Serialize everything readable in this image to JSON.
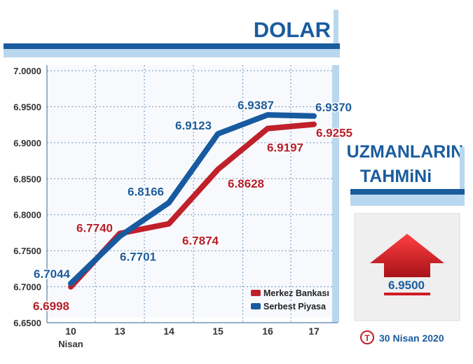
{
  "header": {
    "title": "DOLAR"
  },
  "chart_data": {
    "type": "line",
    "categories": [
      "10",
      "13",
      "14",
      "15",
      "16",
      "17"
    ],
    "first_category_sublabel": "Nisan",
    "yticks": [
      "6.6500",
      "6.7000",
      "6.7500",
      "6.8000",
      "6.8500",
      "6.9000",
      "6.9500",
      "7.0000"
    ],
    "ylim": [
      6.65,
      7.0
    ],
    "grid": true,
    "legend_position": "bottom-right",
    "series": [
      {
        "name": "Merkez Bankası",
        "color": "#c0202a",
        "values": [
          6.6998,
          6.774,
          6.7874,
          6.8628,
          6.9197,
          6.9255
        ],
        "labels": [
          "6.6998",
          "6.7740",
          "6.7874",
          "6.8628",
          "6.9197",
          "6.9255"
        ]
      },
      {
        "name": "Serbest Piyasa",
        "color": "#175aa0",
        "values": [
          6.7044,
          6.7701,
          6.8166,
          6.9123,
          6.9387,
          6.937
        ],
        "labels": [
          "6.7044",
          "6.7701",
          "6.8166",
          "6.9123",
          "6.9387",
          "6.9370"
        ]
      }
    ]
  },
  "forecast": {
    "title_line1": "UZMANLARIN",
    "title_line2": "TAHMiNi",
    "value": "6.9500",
    "direction": "up",
    "date": "30 Nisan 2020",
    "source_icon": "T"
  },
  "colors": {
    "red": "#c0202a",
    "blue": "#175aa0",
    "title_blue": "#1a5c9e",
    "light_blue": "#b9d7ee",
    "panel_bg": "#f2f2f2"
  }
}
